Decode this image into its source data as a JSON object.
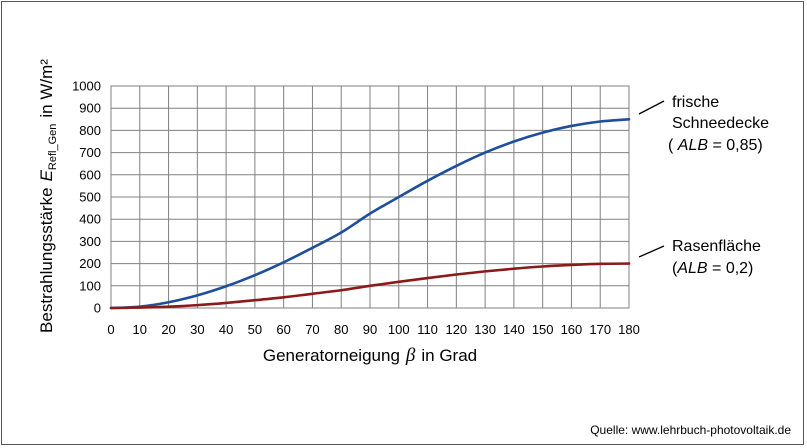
{
  "chart_data": {
    "type": "line",
    "xlabel_main": "Generatorneigung",
    "xlabel_symbol": "β",
    "xlabel_unit": "in Grad",
    "ylabel_main": "Bestrahlungsstärke",
    "ylabel_symbol": "E",
    "ylabel_sub": "Refl_Gen",
    "ylabel_unit": "in W/m²",
    "xlim": [
      0,
      180
    ],
    "ylim": [
      0,
      1000
    ],
    "x_ticks": [
      0,
      10,
      20,
      30,
      40,
      50,
      60,
      70,
      80,
      90,
      100,
      110,
      120,
      130,
      140,
      150,
      160,
      170,
      180
    ],
    "y_ticks": [
      0,
      100,
      200,
      300,
      400,
      500,
      600,
      700,
      800,
      900,
      1000
    ],
    "grid": true,
    "x": [
      0,
      10,
      20,
      30,
      40,
      50,
      60,
      70,
      80,
      90,
      100,
      110,
      120,
      130,
      140,
      150,
      160,
      170,
      180
    ],
    "series": [
      {
        "color": "#1f4e9a",
        "values": [
          0,
          6,
          26,
          57,
          98,
          148,
          206,
          271,
          340,
          425,
          500,
          573,
          640,
          700,
          750,
          790,
          820,
          840,
          850
        ]
      },
      {
        "color": "#8b1a1a",
        "values": [
          0,
          2,
          6,
          13,
          23,
          35,
          48,
          64,
          80,
          100,
          118,
          135,
          151,
          165,
          177,
          187,
          194,
          199,
          200
        ]
      }
    ],
    "annotations": [
      {
        "lines": [
          "frische",
          "Schneedecke"
        ],
        "param_open": "( ",
        "param_name": "ALB",
        "param_value": " = 0,85)"
      },
      {
        "lines": [
          "Rasenfläche"
        ],
        "param_open": "(",
        "param_name": "ALB",
        "param_value": " = 0,2)"
      }
    ]
  },
  "source": "Quelle: www.lehrbuch-photovoltaik.de"
}
